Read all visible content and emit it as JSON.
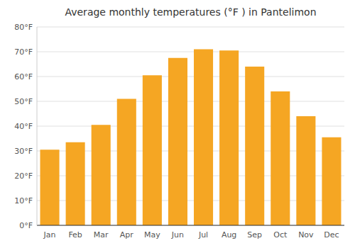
{
  "chart_data": {
    "type": "bar",
    "title": "Average monthly temperatures (°F ) in Pantelimon",
    "categories": [
      "Jan",
      "Feb",
      "Mar",
      "Apr",
      "May",
      "Jun",
      "Jul",
      "Aug",
      "Sep",
      "Oct",
      "Nov",
      "Dec"
    ],
    "values": [
      30.5,
      33.5,
      40.5,
      51.0,
      60.5,
      67.5,
      71.0,
      70.5,
      64.0,
      54.0,
      44.0,
      35.5
    ],
    "color": "#F5A623",
    "ylim": [
      0,
      80
    ],
    "yticks": [
      {
        "value": 0,
        "label": "0°F"
      },
      {
        "value": 10,
        "label": "10°F"
      },
      {
        "value": 20,
        "label": "20°F"
      },
      {
        "value": 30,
        "label": "30°F"
      },
      {
        "value": 40,
        "label": "40°F"
      },
      {
        "value": 50,
        "label": "50°F"
      },
      {
        "value": 60,
        "label": "60°F"
      },
      {
        "value": 70,
        "label": "70°F"
      },
      {
        "value": 80,
        "label": "80°F"
      }
    ],
    "grid": true
  }
}
